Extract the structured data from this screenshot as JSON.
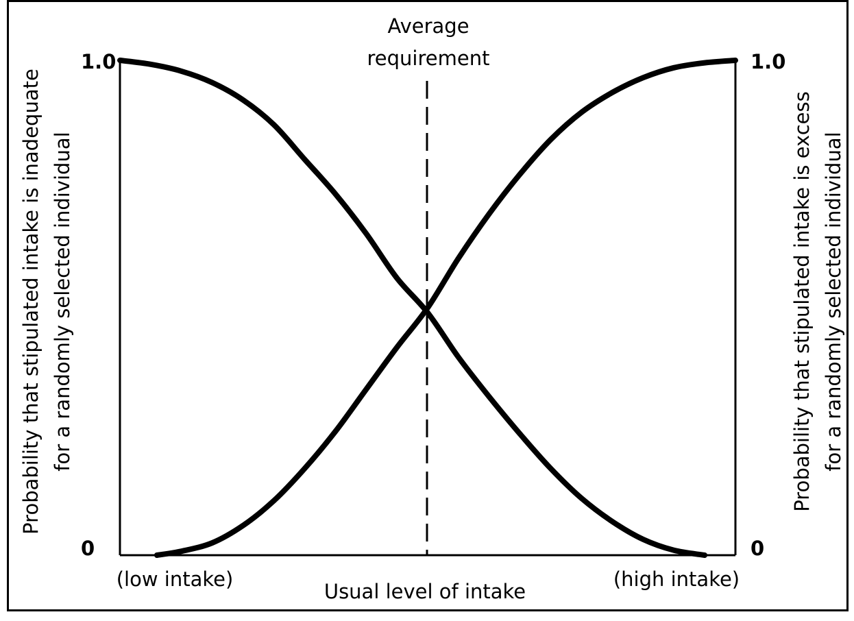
{
  "chart_data": {
    "type": "line",
    "title": "",
    "xlabel": "Usual level of intake",
    "x_tick_labels": {
      "low": "(low intake)",
      "high": "(high intake)"
    },
    "ylabel_left": "Probability that stipulated intake is inadequate for a randomly selected individual",
    "ylabel_left_lines": [
      "Probability that stipulated intake is inadequate",
      "for a randomly selected individual"
    ],
    "ylabel_right": "Probability that stipulated intake is excess for a randomly selected individual",
    "ylabel_right_lines": [
      "Probability that stipulated intake is excess",
      "for a randomly selected individual"
    ],
    "y_ticks_left": [
      "1.0",
      "0"
    ],
    "y_ticks_right": [
      "1.0",
      "0"
    ],
    "ylim": [
      0,
      1
    ],
    "annotation": {
      "lines": [
        "Average",
        "requirement"
      ],
      "x_fraction": 0.5
    },
    "series": [
      {
        "key": "inadequate",
        "x": [
          0,
          0.05,
          0.1,
          0.15,
          0.2,
          0.25,
          0.3,
          0.35,
          0.4,
          0.45,
          0.5,
          0.55,
          0.6,
          0.65,
          0.7,
          0.75,
          0.8,
          0.85,
          0.9,
          0.95
        ],
        "y": [
          1.0,
          0.992,
          0.978,
          0.955,
          0.92,
          0.87,
          0.8,
          0.73,
          0.65,
          0.56,
          0.49,
          0.4,
          0.32,
          0.245,
          0.175,
          0.115,
          0.068,
          0.032,
          0.01,
          0.0
        ]
      },
      {
        "key": "excess",
        "x": [
          0.06,
          0.1,
          0.15,
          0.2,
          0.25,
          0.3,
          0.35,
          0.4,
          0.45,
          0.5,
          0.55,
          0.6,
          0.65,
          0.7,
          0.75,
          0.8,
          0.85,
          0.9,
          0.95,
          1.0
        ],
        "y": [
          0.0,
          0.008,
          0.025,
          0.06,
          0.11,
          0.175,
          0.25,
          0.335,
          0.42,
          0.5,
          0.6,
          0.69,
          0.77,
          0.84,
          0.895,
          0.935,
          0.965,
          0.985,
          0.995,
          1.0
        ]
      }
    ],
    "grid": false,
    "colors": {
      "line": "#000000",
      "background": "#ffffff"
    }
  }
}
